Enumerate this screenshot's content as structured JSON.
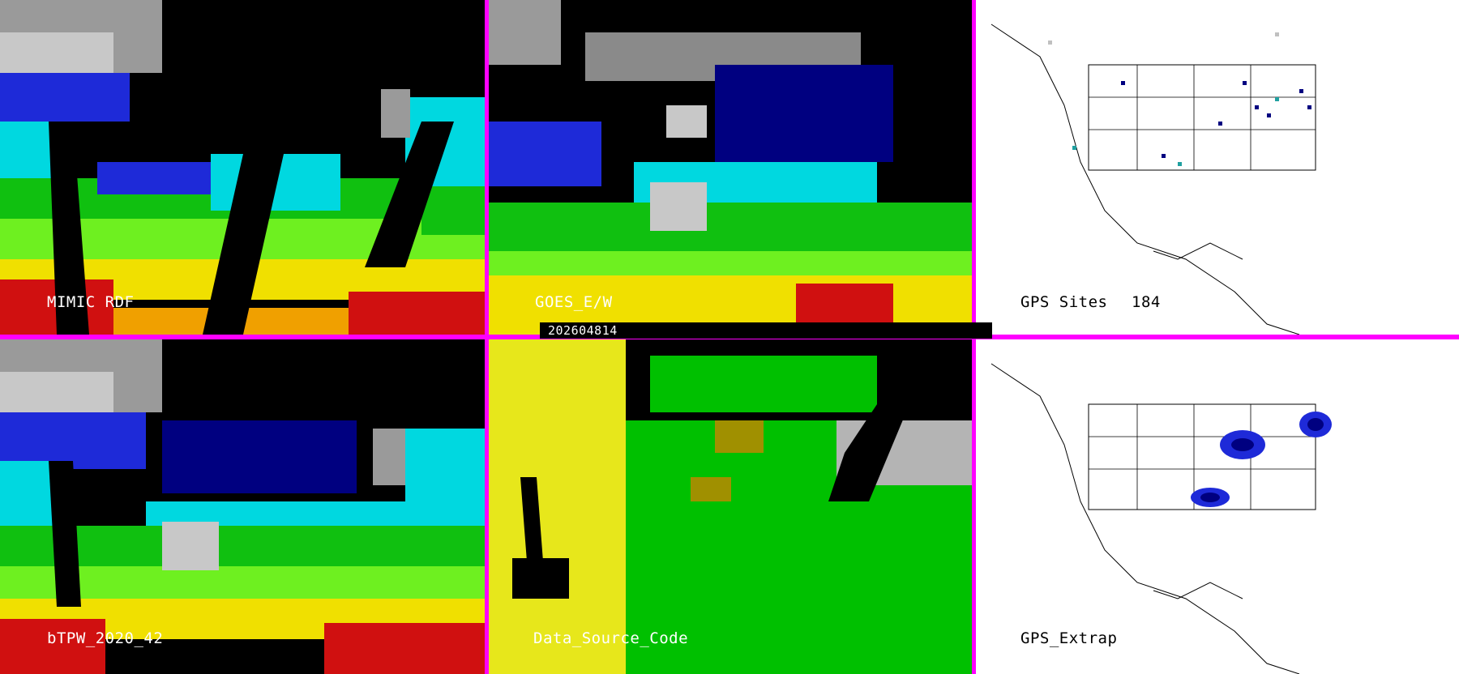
{
  "panels": {
    "mimic": {
      "label": "MIMIC RDF"
    },
    "goes": {
      "label": "GOES_E/W"
    },
    "gps_sites": {
      "label": "GPS Sites",
      "count": "184"
    },
    "btpw": {
      "label": "bTPW_2020_42"
    },
    "data_source": {
      "label": "Data_Source_Code"
    },
    "gps_extrap": {
      "label": "GPS_Extrap"
    }
  },
  "timestamp": "202604814",
  "colors": {
    "divider": "#ff00ff",
    "background_dark": "#000000",
    "map_white": "#ffffff",
    "tpw_gray": "#aaaaaa",
    "tpw_navy": "#000080",
    "tpw_blue": "#1e2ad8",
    "tpw_cyan": "#00d8e0",
    "tpw_green": "#10c010",
    "tpw_lime": "#6ef020",
    "tpw_yellow": "#f0e000",
    "tpw_red": "#d01010",
    "source_gray": "#b4b4b4",
    "source_yellow": "#f0f000",
    "source_green": "#00c000",
    "source_olive": "#a09000",
    "gps_teal": "#20a0a0",
    "gps_light": "#c0c0c0"
  },
  "icons": [
    "state-borders-overlay",
    "coastline-overlay",
    "gps-site-marker"
  ]
}
